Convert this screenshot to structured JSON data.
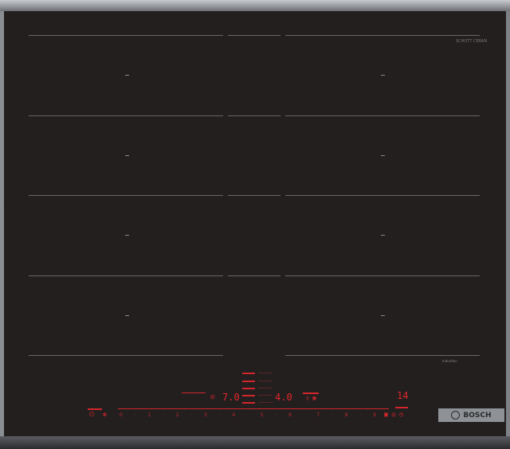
{
  "product": {
    "brand": "BOSCH",
    "glass_logo": "SCHOTT CERAN",
    "type_label": "Induction"
  },
  "zones": {
    "left_display": "7.0",
    "right_display": "4.0",
    "timer_display": "14"
  },
  "slider": {
    "levels": [
      "0",
      "·",
      "1",
      "·",
      "2",
      "·",
      "3",
      "·",
      "4",
      "·",
      "5",
      "·",
      "6",
      "·",
      "7",
      "·",
      "8",
      "·",
      "9"
    ]
  },
  "colors": {
    "glass": "#231f1f",
    "indicator": "#e3262a",
    "frame": "#b5b8bc"
  }
}
